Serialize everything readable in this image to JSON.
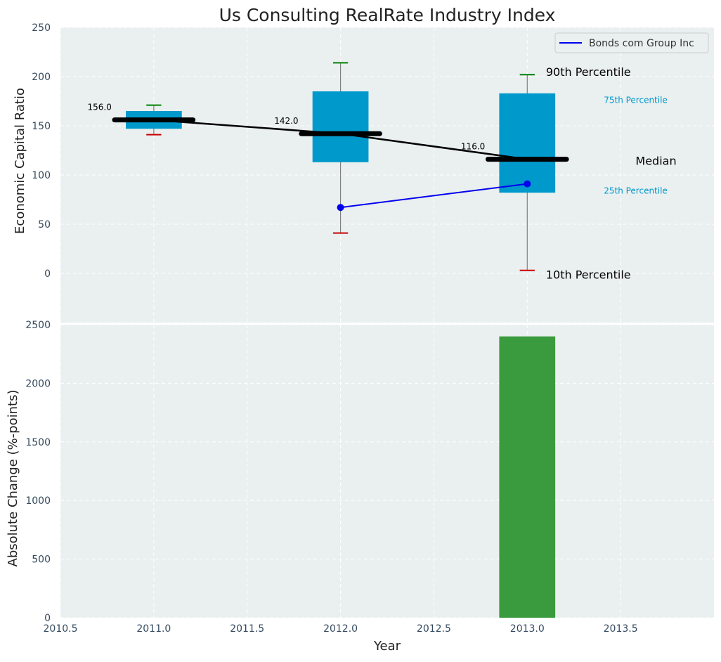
{
  "colors": {
    "panel_bg": "#eaeff0",
    "grid": "#ffffff",
    "box": "#0099cc",
    "median": "#000000",
    "whisker": "#808080",
    "p90_cap": "#008000",
    "p10_cap": "#cc0000",
    "company_line": "#0000ee",
    "bar": "#3a9b3e"
  },
  "chart_data": [
    {
      "type": "box",
      "title": "Us Consulting RealRate Industry Index",
      "xlabel": "",
      "ylabel": "Economic Capital Ratio",
      "xlim": [
        2010.5,
        2014.0
      ],
      "ylim": [
        -50,
        250
      ],
      "yticks": [
        0,
        50,
        100,
        150,
        200,
        250
      ],
      "grid": true,
      "legend": {
        "position": "top-right",
        "entries": [
          "Bonds com Group Inc"
        ]
      },
      "boxes": [
        {
          "x": 2011,
          "p10": 141,
          "p25": 147,
          "median": 156,
          "p75": 165,
          "p90": 171,
          "median_label": "156.0"
        },
        {
          "x": 2012,
          "p10": 41,
          "p25": 113,
          "median": 142,
          "p75": 185,
          "p90": 214,
          "median_label": "142.0"
        },
        {
          "x": 2013,
          "p10": 3,
          "p25": 82,
          "median": 116,
          "p75": 183,
          "p90": 202,
          "median_label": "116.0"
        }
      ],
      "median_trend": {
        "x": [
          2011,
          2012,
          2013
        ],
        "y": [
          156,
          142,
          116
        ]
      },
      "series": [
        {
          "name": "Bonds com Group Inc",
          "x": [
            2012,
            2013
          ],
          "y": [
            67,
            91
          ]
        }
      ],
      "annotations": {
        "p90": "90th Percentile",
        "p75": "75th Percentile",
        "median": "Median",
        "p25": "25th Percentile",
        "p10": "10th Percentile"
      }
    },
    {
      "type": "bar",
      "xlabel": "Year",
      "ylabel": "Absolute Change (%-points)",
      "xlim": [
        2010.5,
        2014.0
      ],
      "xticks": [
        "2010.5",
        "2011.0",
        "2011.5",
        "2012.0",
        "2012.5",
        "2013.0",
        "2013.5"
      ],
      "ylim": [
        0,
        2500
      ],
      "yticks": [
        0,
        500,
        1000,
        1500,
        2000,
        2500
      ],
      "grid": true,
      "bars": [
        {
          "x": 2013,
          "value": 2400
        }
      ]
    }
  ]
}
